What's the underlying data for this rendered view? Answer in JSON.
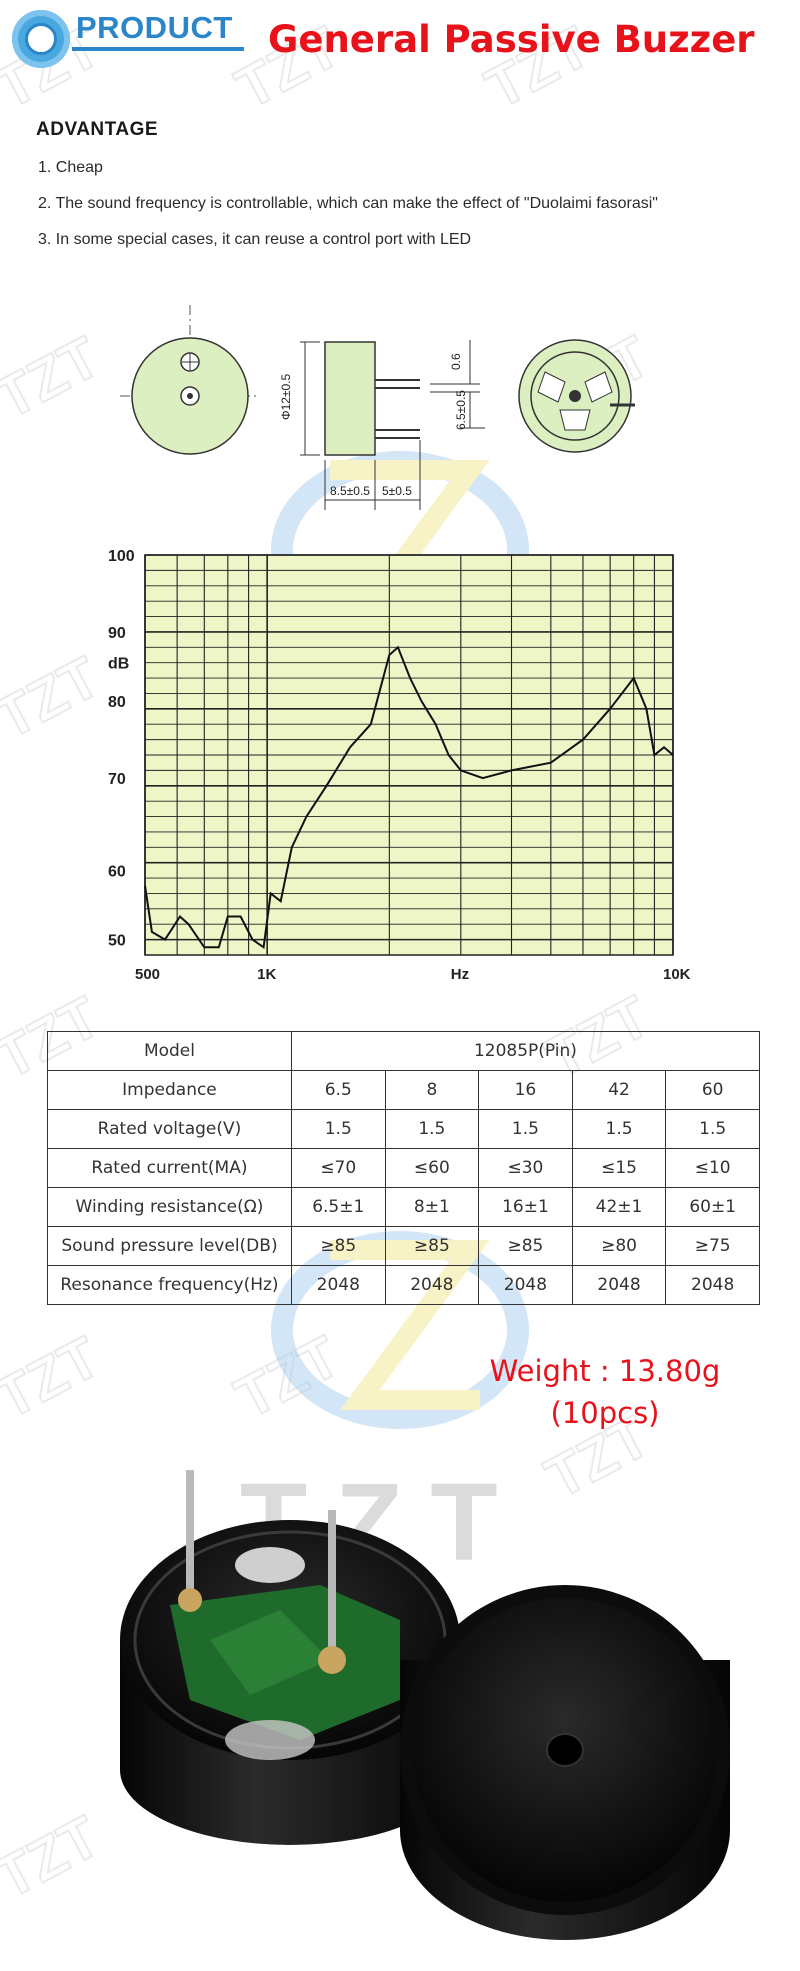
{
  "header": {
    "logo_text": "PRODUCT",
    "title": "General Passive Buzzer"
  },
  "advantage": {
    "heading": "ADVANTAGE",
    "items": [
      "1. Cheap",
      "2. The sound frequency is controllable, which can make the effect of \"Duolaimi fasorasi\"",
      "3. In some special cases, it can reuse a control port with LED"
    ]
  },
  "dimensions": {
    "diameter": "Φ12±0.5",
    "pin_offset": "0.6",
    "height": "6.5±0.5",
    "body_width": "8.5±0.5",
    "pin_pitch": "5±0.5"
  },
  "graph": {
    "y_ticks": [
      "100",
      "90",
      "dB",
      "80",
      "70",
      "60",
      "50"
    ],
    "x_ticks": [
      "500",
      "1K",
      "Hz",
      "10K"
    ]
  },
  "chart_data": {
    "type": "line",
    "title": "",
    "xlabel": "Hz",
    "ylabel": "dB",
    "x_scale": "log",
    "xlim": [
      500,
      10000
    ],
    "ylim": [
      48,
      100
    ],
    "grid": true,
    "series": [
      {
        "x": [
          500,
          520,
          560,
          610,
          640,
          700,
          760,
          800,
          860,
          920,
          980,
          1020,
          1080,
          1150,
          1250,
          1400,
          1600,
          1800,
          2000,
          2100,
          2250,
          2400,
          2600,
          2800,
          3000,
          3400,
          4000,
          5000,
          6000,
          7000,
          8000,
          8600,
          9000,
          9500,
          10000
        ],
        "y": [
          57,
          51,
          50,
          53,
          52,
          49,
          49,
          53,
          53,
          50,
          49,
          56,
          55,
          62,
          66,
          70,
          75,
          78,
          87,
          88,
          84,
          81,
          78,
          74,
          72,
          71,
          72,
          73,
          76,
          80,
          84,
          80,
          74,
          75,
          74
        ]
      }
    ]
  },
  "spec_table": {
    "header": {
      "label": "Model",
      "value": "12085P(Pin)"
    },
    "rows": [
      {
        "label": "Impedance",
        "values": [
          "6.5",
          "8",
          "16",
          "42",
          "60"
        ]
      },
      {
        "label": "Rated voltage(V)",
        "values": [
          "1.5",
          "1.5",
          "1.5",
          "1.5",
          "1.5"
        ]
      },
      {
        "label": "Rated current(MA)",
        "values": [
          "≤70",
          "≤60",
          "≤30",
          "≤15",
          "≤10"
        ]
      },
      {
        "label": "Winding resistance(Ω)",
        "values": [
          "6.5±1",
          "8±1",
          "16±1",
          "42±1",
          "60±1"
        ]
      },
      {
        "label": "Sound pressure level(DB)",
        "values": [
          "≥85",
          "≥85",
          "≥85",
          "≥80",
          "≥75"
        ]
      },
      {
        "label": "Resonance frequency(Hz)",
        "values": [
          "2048",
          "2048",
          "2048",
          "2048",
          "2048"
        ]
      }
    ]
  },
  "weight": {
    "line1": "Weight : 13.80g",
    "line2": "(10pcs)"
  },
  "watermark": {
    "text": "TZT"
  },
  "colors": {
    "title_red": "#e8121a",
    "brand_blue": "#2a86c8",
    "graph_bg": "#eef6c8",
    "drawing_fill": "#dcefc0"
  }
}
